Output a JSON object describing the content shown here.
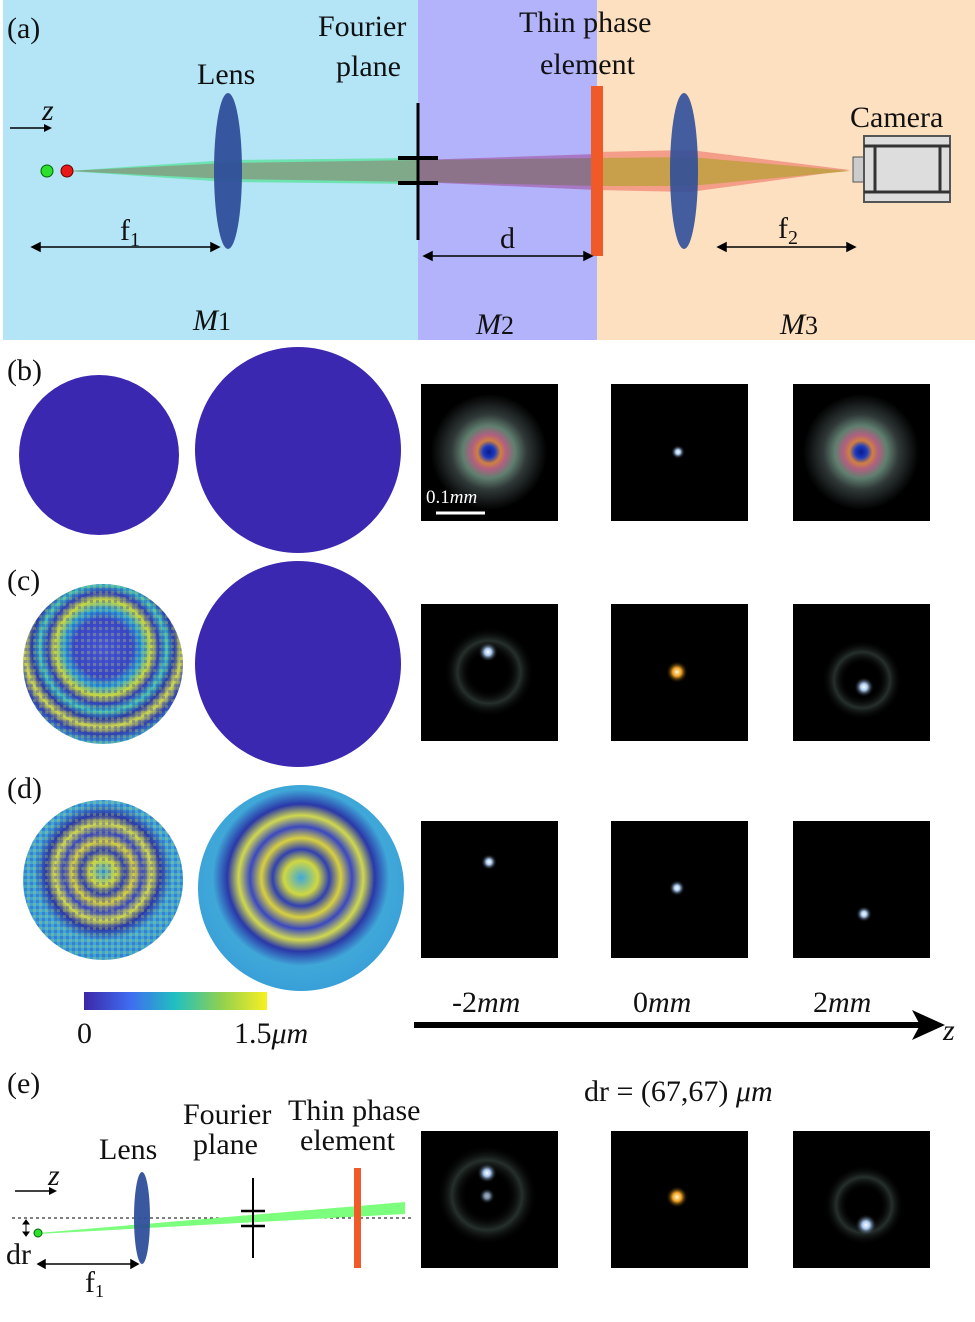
{
  "panel_a": {
    "label": "(a)",
    "lens": "Lens",
    "fourier_1": "Fourier",
    "fourier_2": "plane",
    "phase_1": "Thin phase",
    "phase_2": "element",
    "camera": "Camera",
    "z": "z",
    "f1": "f",
    "f1_sub": "1",
    "d": "d",
    "f2": "f",
    "f2_sub": "2",
    "m1": "M",
    "m1_sub": "1",
    "m2": "M",
    "m2_sub": "2",
    "m3": "M",
    "m3_sub": "3",
    "colors": {
      "region1": "#b3e5f7",
      "region2": "#b3b3fb",
      "region3": "#fde0bf",
      "lens": "#2f4f9a",
      "phase_element": "#f05a28"
    }
  },
  "panel_b": {
    "label": "(b)",
    "scale_bar": "0.1",
    "scale_unit": "mm"
  },
  "panel_c": {
    "label": "(c)"
  },
  "panel_d": {
    "label": "(d)"
  },
  "colorbar": {
    "min": "0",
    "max": "1.5",
    "max_unit": "μm"
  },
  "z_axis": {
    "labels": [
      "-2",
      "0",
      "2"
    ],
    "unit": "mm",
    "axis": "z"
  },
  "panel_e": {
    "label": "(e)",
    "lens": "Lens",
    "fourier_1": "Fourier",
    "fourier_2": "plane",
    "phase_1": "Thin phase",
    "phase_2": "element",
    "z": "z",
    "dr": "dr",
    "f1": "f",
    "f1_sub": "1",
    "dr_value": "dr = (67,67)",
    "dr_unit": "μm"
  }
}
